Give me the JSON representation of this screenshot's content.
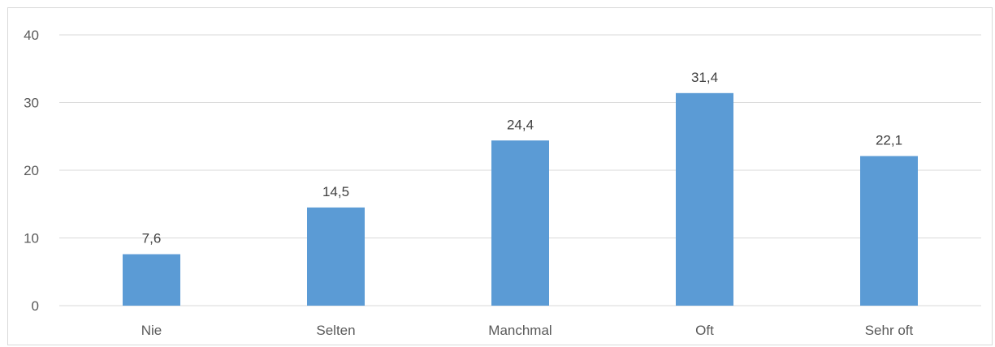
{
  "chart_data": {
    "type": "bar",
    "categories": [
      "Nie",
      "Selten",
      "Manchmal",
      "Oft",
      "Sehr oft"
    ],
    "values": [
      7.6,
      14.5,
      24.4,
      31.4,
      22.1
    ],
    "data_labels": [
      "7,6",
      "14,5",
      "24,4",
      "31,4",
      "22,1"
    ],
    "title": "",
    "xlabel": "",
    "ylabel": "",
    "ylim": [
      0,
      40
    ],
    "yticks": [
      0,
      10,
      20,
      30,
      40
    ],
    "ytick_labels": [
      "0",
      "10",
      "20",
      "30",
      "40"
    ],
    "grid": true,
    "legend": "none",
    "colors": {
      "bar": "#5b9bd5",
      "grid": "#d9d9d9",
      "axis": "#d9d9d9",
      "text": "#595959"
    }
  }
}
